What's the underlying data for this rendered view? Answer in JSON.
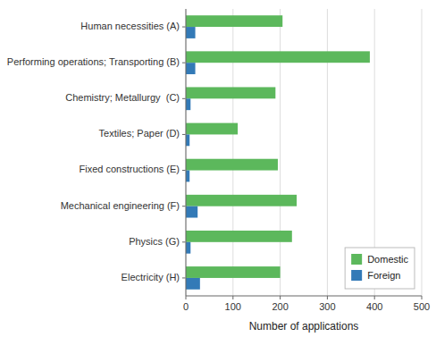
{
  "chart_data": {
    "type": "bar",
    "orientation": "horizontal",
    "categories": [
      "Human necessities (A)",
      "Performing operations; Transporting (B)",
      "Chemistry; Metallurgy  (C)",
      "Textiles; Paper (D)",
      "Fixed constructions (E)",
      "Mechanical engineering (F)",
      "Physics (G)",
      "Electricity (H)"
    ],
    "series": [
      {
        "name": "Domestic",
        "color": "#5cb85c",
        "values": [
          205,
          390,
          190,
          110,
          195,
          235,
          225,
          200
        ]
      },
      {
        "name": "Foreign",
        "color": "#337ab7",
        "values": [
          20,
          20,
          10,
          8,
          8,
          25,
          10,
          30
        ]
      }
    ],
    "xlabel": "Number of applications",
    "xlim": [
      0,
      500
    ],
    "xticks": [
      0,
      100,
      200,
      300,
      400,
      500
    ],
    "grid": true,
    "legend": "lower right"
  }
}
